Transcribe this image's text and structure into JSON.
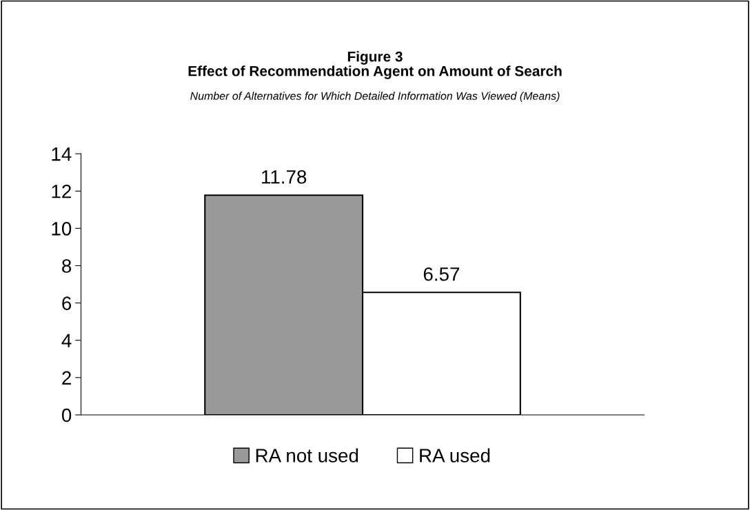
{
  "chart_data": {
    "type": "bar",
    "title": "Figure 3\nEffect of Recommendation Agent on Amount of Search",
    "subtitle": "Number of Alternatives for Which Detailed Information Was Viewed (Means)",
    "categories": [
      null
    ],
    "series": [
      {
        "name": "RA not used",
        "color": "#999999",
        "values": [
          11.78
        ]
      },
      {
        "name": "RA used",
        "color": "#ffffff",
        "values": [
          6.57
        ]
      }
    ],
    "ylim": [
      0,
      14
    ],
    "yticks": [
      0,
      2,
      4,
      6,
      8,
      10,
      12,
      14
    ],
    "grid": false,
    "legend": "bottom",
    "data_labels": true
  }
}
